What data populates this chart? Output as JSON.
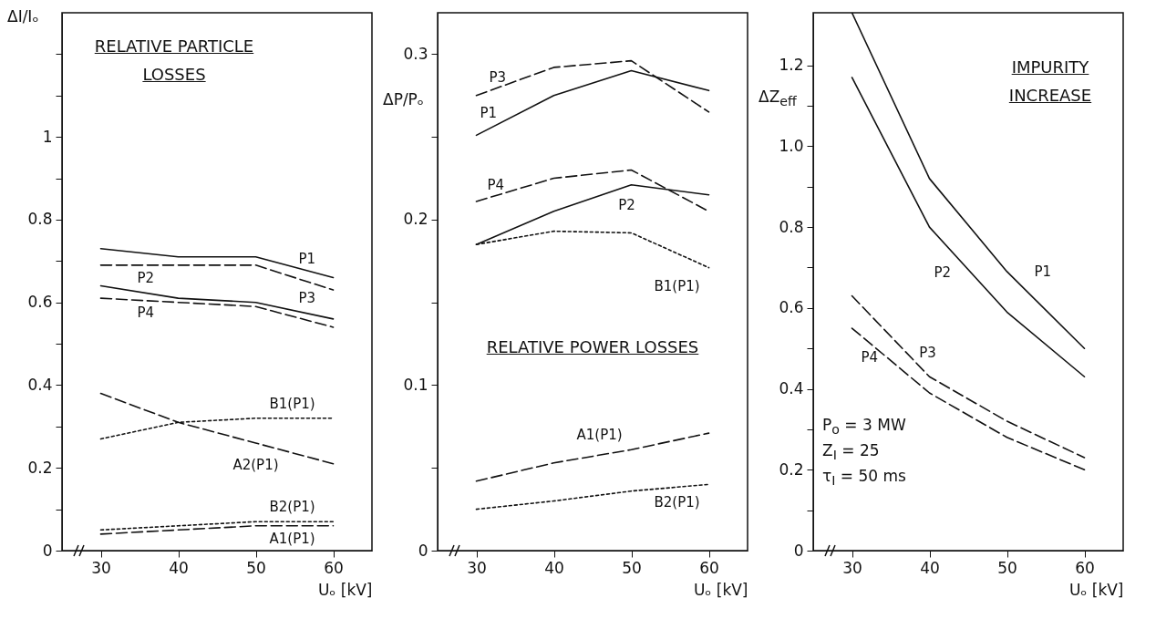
{
  "chart_data": [
    {
      "type": "line",
      "title": "RELATIVE PARTICLE LOSSES",
      "xlabel": "Uₒ [kV]",
      "ylabel": "ΔI/Iₒ",
      "x": [
        30,
        40,
        50,
        60
      ],
      "xlim": [
        25,
        65
      ],
      "xticks": [
        30,
        40,
        50,
        60
      ],
      "ylim": [
        0,
        1.3
      ],
      "yticks": [
        0,
        {
          "value": 0.1,
          "label": null
        },
        0.2,
        {
          "value": 0.3,
          "label": null
        },
        0.4,
        {
          "value": 0.5,
          "label": null
        },
        0.6,
        {
          "value": 0.7,
          "label": null
        },
        0.8,
        {
          "value": 0.9,
          "label": null
        },
        1,
        {
          "value": 1.1,
          "label": null
        },
        {
          "value": 1.2,
          "label": null
        }
      ],
      "series": [
        {
          "name": "P1",
          "color": "#111111",
          "line_style": "solid",
          "values": [
            0.73,
            0.71,
            0.71,
            0.66
          ]
        },
        {
          "name": "P3",
          "color": "#111111",
          "line_style": "dashed",
          "values": [
            0.69,
            0.69,
            0.69,
            0.63
          ]
        },
        {
          "name": "P2",
          "color": "#111111",
          "line_style": "solid",
          "values": [
            0.64,
            0.61,
            0.6,
            0.56
          ]
        },
        {
          "name": "P4",
          "color": "#111111",
          "line_style": "dashed",
          "values": [
            0.61,
            0.6,
            0.59,
            0.54
          ]
        },
        {
          "name": "B1(P1)",
          "color": "#111111",
          "line_style": "dotted",
          "values": [
            0.27,
            0.31,
            0.32,
            0.32
          ]
        },
        {
          "name": "A2(P1)",
          "color": "#111111",
          "line_style": "dashed",
          "values": [
            0.38,
            0.31,
            0.26,
            0.21
          ]
        },
        {
          "name": "B2(P1)",
          "color": "#111111",
          "line_style": "dotted",
          "values": [
            0.05,
            0.06,
            0.07,
            0.07
          ]
        },
        {
          "name": "A1(P1)",
          "color": "#111111",
          "line_style": "dashed",
          "values": [
            0.04,
            0.05,
            0.06,
            0.06
          ]
        }
      ]
    },
    {
      "type": "line",
      "title": "RELATIVE POWER LOSSES",
      "xlabel": "Uₒ [kV]",
      "ylabel": "ΔP/Pₒ",
      "x": [
        30,
        40,
        50,
        60
      ],
      "xlim": [
        25,
        65
      ],
      "xticks": [
        30,
        40,
        50,
        60
      ],
      "ylim": [
        0,
        0.325
      ],
      "yticks": [
        0,
        {
          "value": 0.05,
          "label": null
        },
        0.1,
        {
          "value": 0.15,
          "label": null
        },
        0.2,
        {
          "value": 0.25,
          "label": null
        },
        0.3
      ],
      "series": [
        {
          "name": "P3",
          "color": "#111111",
          "line_style": "dashed",
          "values": [
            0.275,
            0.292,
            0.296,
            0.265
          ]
        },
        {
          "name": "P1",
          "color": "#111111",
          "line_style": "solid",
          "values": [
            0.251,
            0.275,
            0.29,
            0.278
          ]
        },
        {
          "name": "P4",
          "color": "#111111",
          "line_style": "dashed",
          "values": [
            0.211,
            0.225,
            0.23,
            0.205
          ]
        },
        {
          "name": "P2",
          "color": "#111111",
          "line_style": "solid",
          "values": [
            0.185,
            0.205,
            0.221,
            0.215
          ]
        },
        {
          "name": "B1(P1)",
          "color": "#111111",
          "line_style": "dotted",
          "values": [
            0.185,
            0.193,
            0.192,
            0.171
          ]
        },
        {
          "name": "A1(P1)",
          "color": "#111111",
          "line_style": "dashed",
          "values": [
            0.042,
            0.053,
            0.061,
            0.071
          ]
        },
        {
          "name": "B2(P1)",
          "color": "#111111",
          "line_style": "dotted",
          "values": [
            0.025,
            0.03,
            0.036,
            0.04
          ]
        }
      ]
    },
    {
      "type": "line",
      "title": "IMPURITY INCREASE",
      "xlabel": "Uₒ [kV]",
      "ylabel": "ΔZ$_{eff}$",
      "x": [
        30,
        40,
        50,
        60
      ],
      "xlim": [
        25,
        65
      ],
      "xticks": [
        30,
        40,
        50,
        60
      ],
      "ylim": [
        0,
        1.33
      ],
      "yticks": [
        0,
        {
          "value": 0.1,
          "label": null
        },
        0.2,
        {
          "value": 0.3,
          "label": null
        },
        0.4,
        {
          "value": 0.5,
          "label": null
        },
        0.6,
        {
          "value": 0.7,
          "label": null
        },
        0.8,
        {
          "value": 0.9,
          "label": null
        },
        {
          "value": 1,
          "label": "1.0"
        },
        {
          "value": 1.1,
          "label": null
        },
        1.2
      ],
      "annotations": [
        "P$_{o}$ = 3 MW",
        "Z$_{I}$ = 25",
        "τ$_{I}$ = 50 ms"
      ],
      "series": [
        {
          "name": "P1",
          "color": "#111111",
          "line_style": "solid",
          "values": [
            1.33,
            0.92,
            0.69,
            0.5
          ]
        },
        {
          "name": "P2",
          "color": "#111111",
          "line_style": "solid",
          "values": [
            1.17,
            0.8,
            0.59,
            0.43
          ]
        },
        {
          "name": "P3",
          "color": "#111111",
          "line_style": "dashed",
          "values": [
            0.63,
            0.43,
            0.32,
            0.23
          ]
        },
        {
          "name": "P4",
          "color": "#111111",
          "line_style": "dashed",
          "values": [
            0.55,
            0.39,
            0.28,
            0.2
          ]
        }
      ]
    }
  ]
}
